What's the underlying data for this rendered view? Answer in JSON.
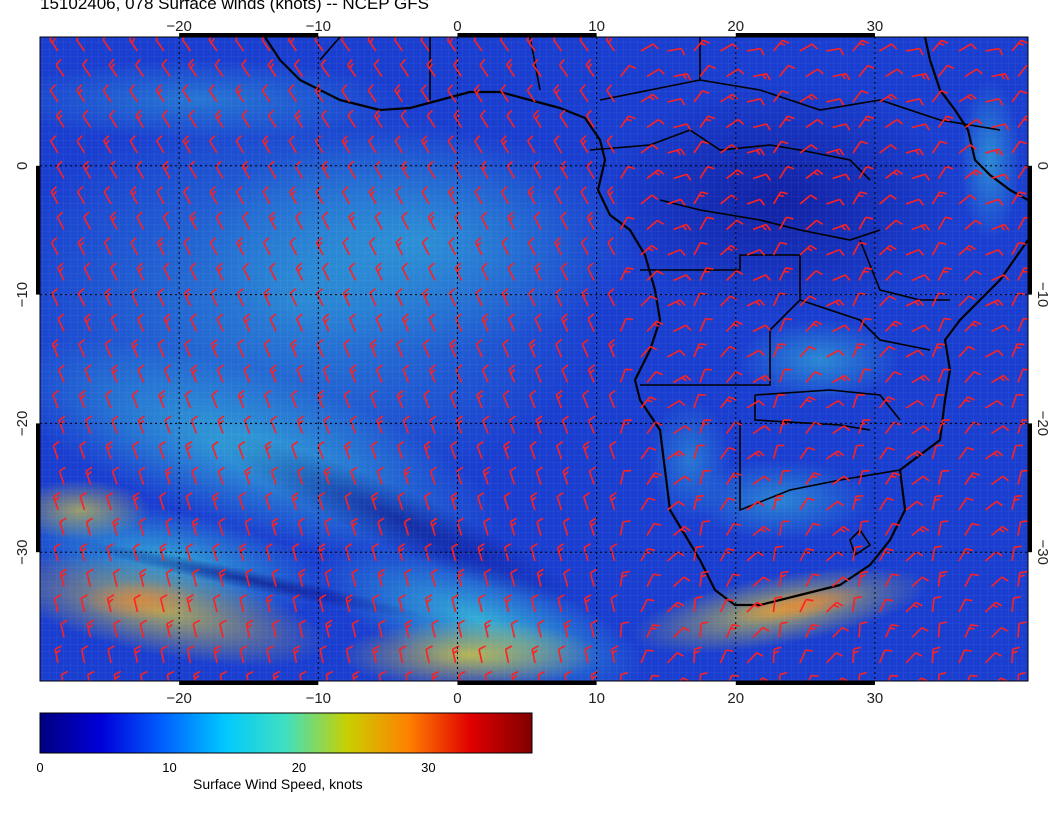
{
  "title": "15102406, 078 Surface winds (knots) -- NCEP GFS",
  "map": {
    "lon_range": [
      -30,
      41
    ],
    "lat_range": [
      -40,
      10
    ],
    "lon_ticks_top": [
      "−20",
      "−10",
      "0",
      "10",
      "20",
      "30"
    ],
    "lon_ticks_bottom": [
      "−20",
      "−10",
      "0",
      "10",
      "20",
      "30"
    ],
    "lat_ticks_left": [
      "0",
      "−10",
      "−20",
      "−30"
    ],
    "lat_ticks_right": [
      "0",
      "−10",
      "−20",
      "−30"
    ],
    "grid": "dotted",
    "barb_color": "#ff2020",
    "coast_color": "#000000"
  },
  "colorbar": {
    "title": "Surface Wind Speed, knots",
    "range": [
      0,
      38
    ],
    "ticks": [
      "0",
      "10",
      "20",
      "30"
    ],
    "tick_values": [
      0,
      10,
      20,
      30
    ],
    "colors": [
      "#00007f",
      "#0000d9",
      "#0060ff",
      "#00c8ff",
      "#40e0c0",
      "#c8d000",
      "#ff8000",
      "#e00000",
      "#800000"
    ]
  }
}
